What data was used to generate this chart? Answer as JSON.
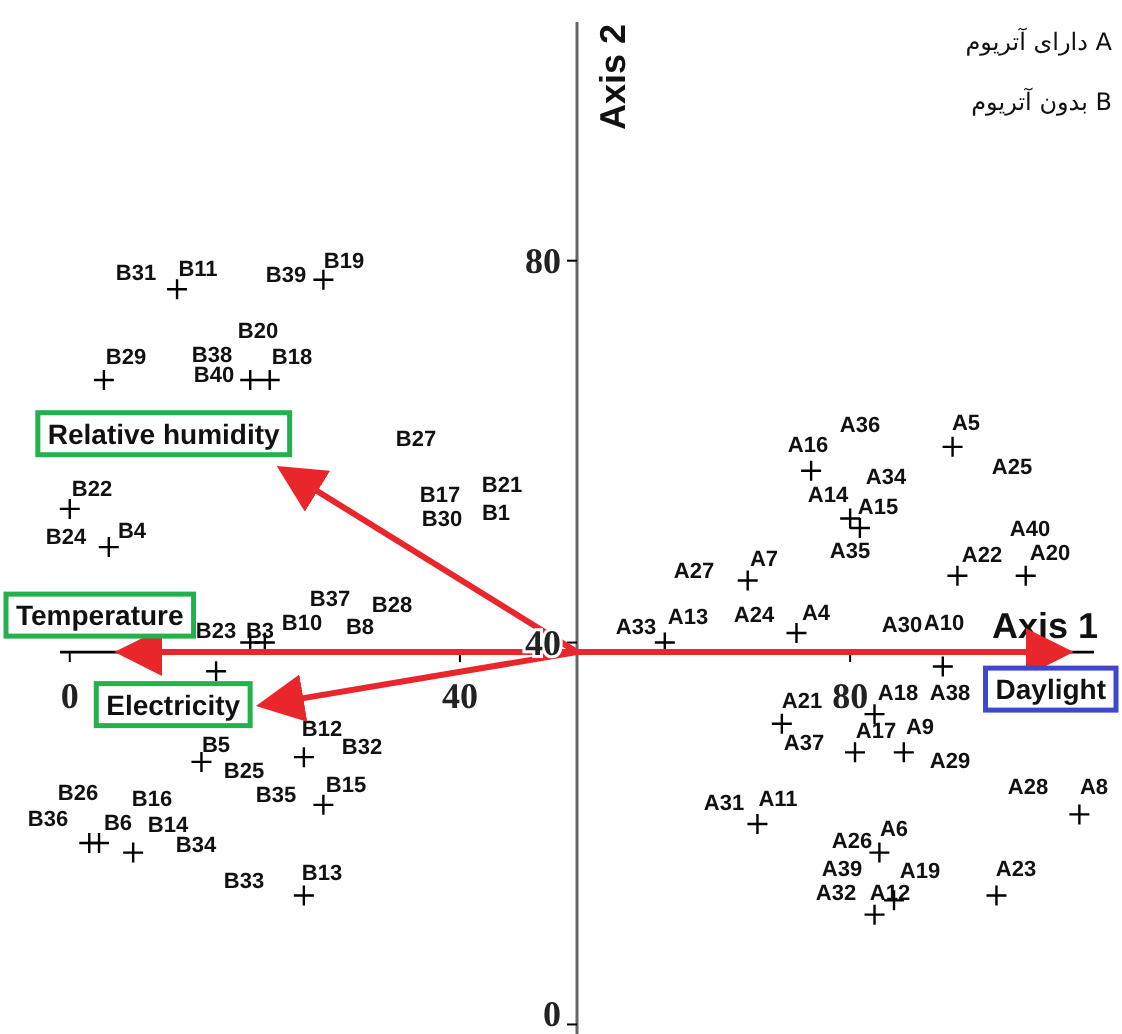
{
  "chart_data": {
    "type": "scatter",
    "xlabel": "Axis 1",
    "ylabel": "Axis 2",
    "xlim": [
      -1,
      105
    ],
    "ylim": [
      -1,
      105
    ],
    "xticks": [
      0,
      40,
      80
    ],
    "yticks": [
      0,
      40,
      80
    ],
    "marker": "cross",
    "ref_lines": [
      {
        "axis": "y",
        "value": 39,
        "color": "#000000"
      }
    ],
    "series": [
      {
        "color": "#000000",
        "x": [
          11,
          26,
          3.5,
          18.5,
          20.5,
          0,
          4,
          18.5,
          20,
          15,
          13.5,
          24,
          26,
          2,
          3,
          6.5,
          24,
          90.5,
          76,
          80,
          81,
          69.5,
          91,
          98,
          61,
          74.5,
          89.5,
          73,
          82.5,
          80.5,
          85.5,
          103.5,
          70.5,
          83,
          84.5,
          82.5,
          95
        ],
        "values": [
          77,
          78,
          67.5,
          67.5,
          67.5,
          54,
          50,
          40,
          40,
          37,
          27.5,
          28,
          23,
          19,
          19,
          18,
          13.5,
          60.5,
          58,
          53,
          52,
          46.5,
          47,
          47,
          40,
          41,
          37.5,
          31.5,
          32.5,
          28.5,
          28.5,
          22,
          21,
          18,
          13,
          11.5,
          13.5
        ]
      },
      {
        "type": "line",
        "marker": "none",
        "name": "Relative humidity",
        "color": "#e8262b",
        "x": [
          52,
          22
        ],
        "values": [
          39,
          58
        ]
      },
      {
        "type": "line",
        "marker": "none",
        "name": "Temperature",
        "color": "#e8262b",
        "x": [
          52,
          5.5
        ],
        "values": [
          39,
          39
        ]
      },
      {
        "type": "line",
        "marker": "none",
        "name": "Electricity",
        "color": "#e8262b",
        "x": [
          52,
          20
        ],
        "values": [
          39,
          33.5
        ]
      },
      {
        "type": "line",
        "marker": "none",
        "name": "Daylight",
        "color": "#e8262b",
        "x": [
          52,
          102
        ],
        "values": [
          39,
          39
        ]
      }
    ],
    "annotations": [
      "A دارای آتریوم",
      "B بدون آتریوم",
      "B31",
      "B11",
      "B39",
      "B19",
      "B20",
      "B29",
      "B38",
      "B18",
      "B40",
      "B27",
      "B22",
      "B17",
      "B21",
      "B30",
      "B1",
      "B24",
      "B4",
      "B37",
      "B28",
      "B10",
      "B8",
      "B23",
      "B3",
      "B12",
      "B32",
      "B5",
      "B25",
      "B26",
      "B16",
      "B35",
      "B15",
      "B36",
      "B6",
      "B14",
      "B34",
      "B33",
      "B13",
      "A36",
      "A5",
      "A16",
      "A25",
      "A34",
      "A14",
      "A15",
      "A35",
      "A40",
      "A27",
      "A7",
      "A22",
      "A20",
      "A33",
      "A13",
      "A24",
      "A4",
      "A30",
      "A10",
      "A21",
      "A18",
      "A38",
      "A17",
      "A9",
      "A37",
      "A29",
      "A28",
      "A8",
      "A31",
      "A11",
      "A6",
      "A26",
      "A39",
      "A19",
      "A23",
      "A32",
      "A12"
    ]
  }
}
